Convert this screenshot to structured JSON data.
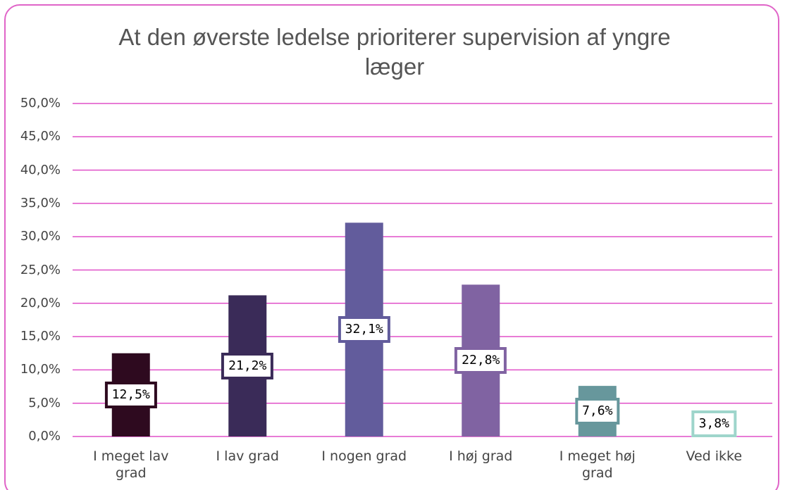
{
  "chart_data": {
    "type": "bar",
    "title": "At den øverste ledelse prioriterer supervision af yngre læger",
    "categories": [
      "I meget lav grad",
      "I lav grad",
      "I nogen grad",
      "I høj grad",
      "I meget høj grad",
      "Ved ikke"
    ],
    "values": [
      12.5,
      21.2,
      32.1,
      22.8,
      7.6,
      3.8
    ],
    "value_labels": [
      "12,5%",
      "21,2%",
      "32,1%",
      "22,8%",
      "7,6%",
      "3,8%"
    ],
    "colors": [
      "#2e0a1f",
      "#3a2b58",
      "#625c9c",
      "#8063a2",
      "#67979c",
      "#9ed5cb"
    ],
    "ylim": [
      0,
      50
    ],
    "yticks": [
      {
        "value": 0,
        "label": "0,0%"
      },
      {
        "value": 5,
        "label": "5,0%"
      },
      {
        "value": 10,
        "label": "10,0%"
      },
      {
        "value": 15,
        "label": "15,0%"
      },
      {
        "value": 20,
        "label": "20,0%"
      },
      {
        "value": 25,
        "label": "25,0%"
      },
      {
        "value": 30,
        "label": "30,0%"
      },
      {
        "value": 35,
        "label": "35,0%"
      },
      {
        "value": 40,
        "label": "40,0%"
      },
      {
        "value": 45,
        "label": "45,0%"
      },
      {
        "value": 50,
        "label": "50,0%"
      }
    ],
    "grid": true
  }
}
